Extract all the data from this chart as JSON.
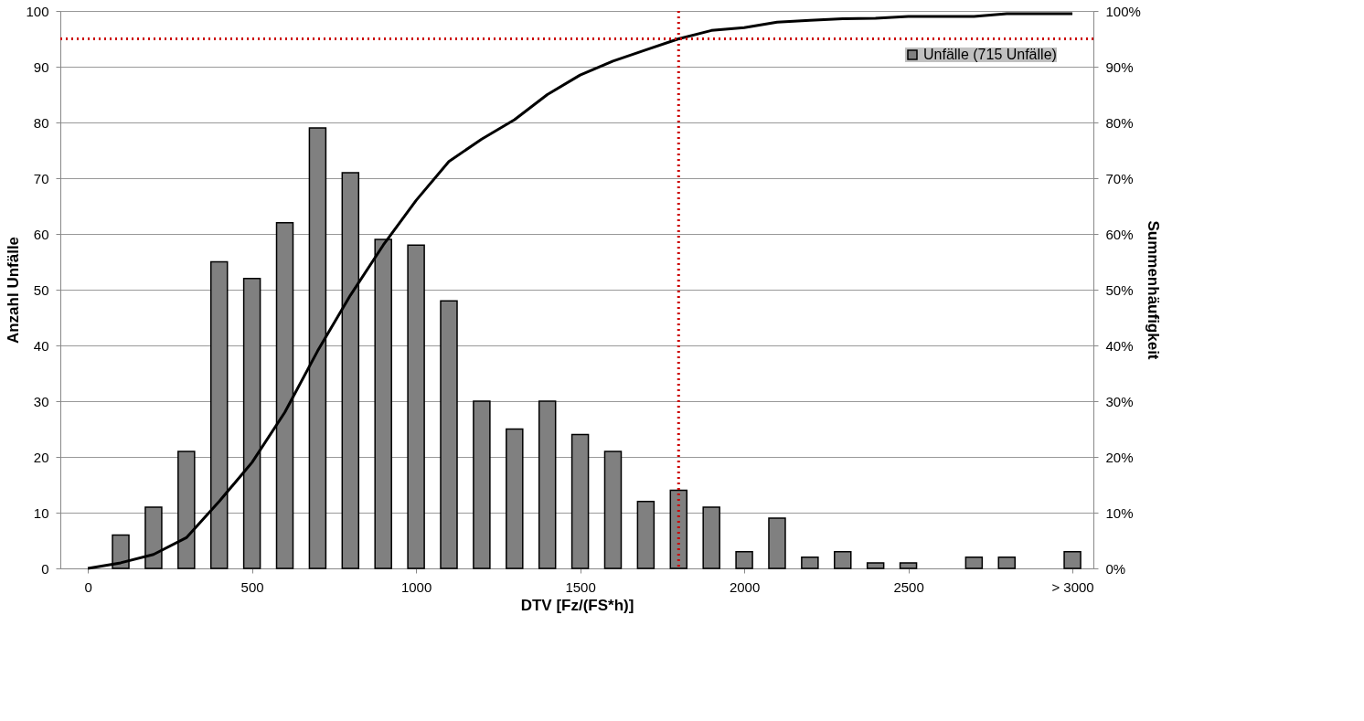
{
  "chart_data": {
    "type": "bar",
    "xlabel": "DTV [Fz/(FS*h)]",
    "ylabel": "Anzahl Unfälle",
    "y2label": "Summenhäufigkeit",
    "x": [
      100,
      200,
      300,
      400,
      500,
      600,
      700,
      800,
      900,
      1000,
      1100,
      1200,
      1300,
      1400,
      1500,
      1600,
      1700,
      1800,
      1900,
      2000,
      2100,
      2200,
      2300,
      2400,
      2500,
      2600,
      2700,
      2800,
      2900,
      3000
    ],
    "series": [
      {
        "name": "Unfälle (715 Unfälle)",
        "color": "#808080",
        "values": [
          6,
          11,
          21,
          55,
          52,
          62,
          79,
          71,
          59,
          58,
          48,
          30,
          25,
          30,
          24,
          21,
          12,
          14,
          11,
          3,
          9,
          2,
          3,
          1,
          1,
          null,
          2,
          2,
          null,
          3
        ]
      },
      {
        "type": "line",
        "axis": "y2",
        "color": "#000000",
        "x": [
          0,
          100,
          200,
          300,
          400,
          500,
          600,
          700,
          800,
          900,
          1000,
          1100,
          1200,
          1300,
          1400,
          1500,
          1600,
          1700,
          1800,
          1900,
          2000,
          2100,
          2200,
          2300,
          2400,
          2500,
          2600,
          2700,
          2800,
          2900,
          3000
        ],
        "values": [
          0,
          1,
          2.5,
          5.5,
          12,
          19,
          28,
          39,
          49,
          58,
          66,
          73,
          77,
          80.5,
          85,
          88.5,
          91,
          93,
          95,
          96.5,
          97,
          98,
          98.3,
          98.6,
          98.7,
          99,
          99,
          99,
          99.5,
          99.5,
          99.5
        ]
      }
    ],
    "xlim": [
      -70,
      3050
    ],
    "xticks": [
      0,
      500,
      1000,
      1500,
      2000,
      2500,
      {
        "value": 3000,
        "label": "> 3000"
      }
    ],
    "ylim": [
      0,
      100
    ],
    "yticks": [
      0,
      10,
      20,
      30,
      40,
      50,
      60,
      70,
      80,
      90,
      100
    ],
    "y2lim": [
      0,
      100
    ],
    "y2ticks": [
      {
        "value": 0,
        "label": "0%"
      },
      {
        "value": 10,
        "label": "10%"
      },
      {
        "value": 20,
        "label": "20%"
      },
      {
        "value": 30,
        "label": "30%"
      },
      {
        "value": 40,
        "label": "40%"
      },
      {
        "value": 50,
        "label": "50%"
      },
      {
        "value": 60,
        "label": "60%"
      },
      {
        "value": 70,
        "label": "70%"
      },
      {
        "value": 80,
        "label": "80%"
      },
      {
        "value": 90,
        "label": "90%"
      },
      {
        "value": 100,
        "label": "100%"
      }
    ],
    "ref_lines": [
      {
        "axis": "x",
        "value": 1800,
        "color": "#cc0000",
        "line_style": "dotted"
      },
      {
        "axis": "y2",
        "value": 95,
        "color": "#cc0000",
        "line_style": "dotted"
      }
    ],
    "grid": "y",
    "legend": "top right",
    "line_style": "solid",
    "marker": "none"
  }
}
